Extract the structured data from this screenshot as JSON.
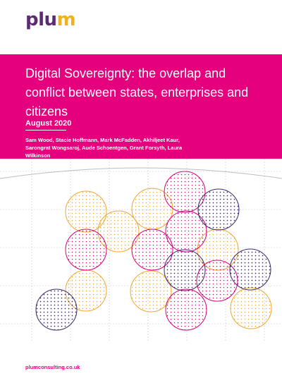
{
  "brand": {
    "logo_text": "plum"
  },
  "report": {
    "title": "Digital Sovereignty: the overlap and conflict between states, enterprises and citizens",
    "date": "August 2020",
    "authors": "Sam Wood, Stacie Hoffmann, Mark McFadden, Akhiljeet Kaur, Sarongrat Wongsaroj, Aude Schoentgen, Grant Forsyth, Laura Wilkinson"
  },
  "footer": {
    "url": "plumconsulting.co.uk"
  },
  "colors": {
    "banner": "#e5007e",
    "logo": "#5b2c6f",
    "logo_dot": "#f0b11e",
    "circle_orange": "#f0a830",
    "circle_pink": "#d6007a",
    "circle_purple": "#3d2a6b"
  },
  "artwork_icon": "overlapping-dotted-circles"
}
